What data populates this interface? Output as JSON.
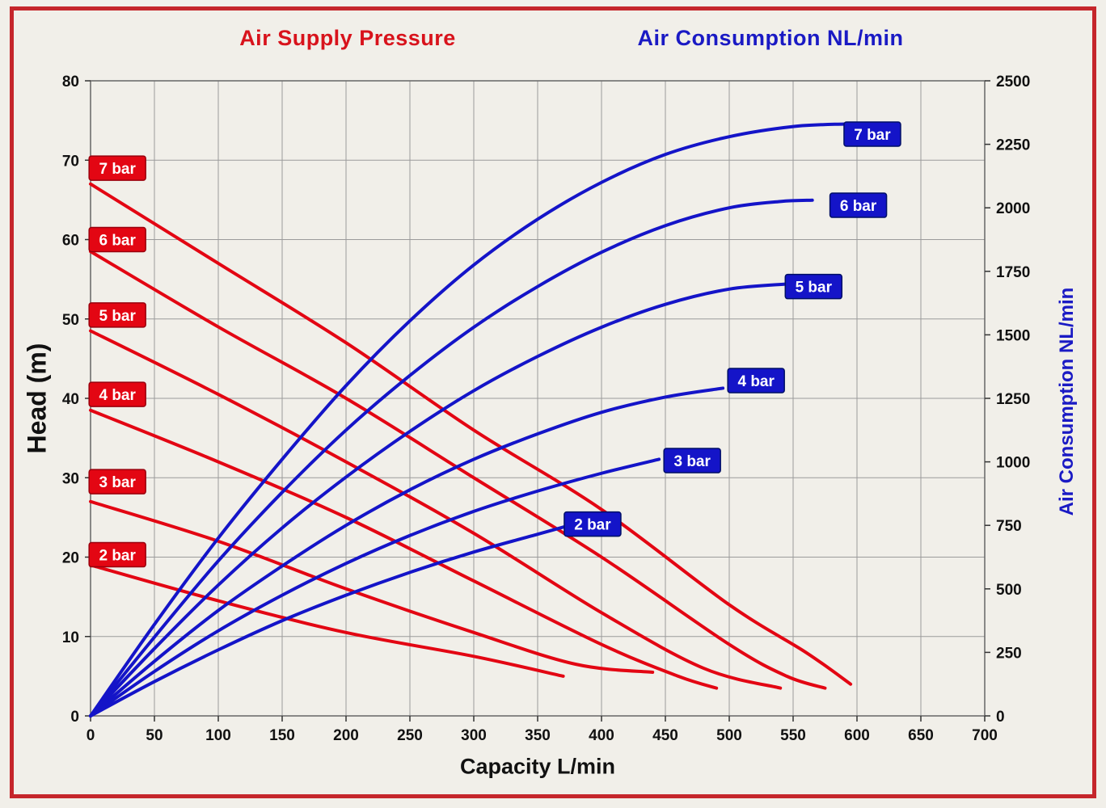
{
  "colors": {
    "red": "#e30613",
    "blue": "#1414c8",
    "grid": "#9b9b9b",
    "plot_border": "#666666",
    "axis_text": "#111111",
    "frame_border": "#c5262b",
    "background": "#f1efe9",
    "label_text": "#ffffff"
  },
  "chart_data": {
    "type": "line",
    "title_left": "Air Supply Pressure",
    "title_right": "Air Consumption NL/min",
    "xlabel": "Capacity L/min",
    "ylabel_left": "Head (m)",
    "ylabel_right": "Air Consumption NL/min",
    "x_range": [
      0,
      700
    ],
    "x_ticks": [
      0,
      50,
      100,
      150,
      200,
      250,
      300,
      350,
      400,
      450,
      500,
      550,
      600,
      650,
      700
    ],
    "y_left_range": [
      0,
      80
    ],
    "y_left_ticks": [
      0,
      10,
      20,
      30,
      40,
      50,
      60,
      70,
      80
    ],
    "y_right_range": [
      0,
      2500
    ],
    "y_right_ticks": [
      0,
      250,
      500,
      750,
      1000,
      1250,
      1500,
      1750,
      2000,
      2250,
      2500
    ],
    "grid": true,
    "head_series": [
      {
        "name": "7 bar",
        "points": [
          [
            0,
            67
          ],
          [
            100,
            57
          ],
          [
            200,
            47
          ],
          [
            300,
            36
          ],
          [
            400,
            26
          ],
          [
            500,
            14
          ],
          [
            560,
            8
          ],
          [
            595,
            4
          ]
        ],
        "label": [
          21,
          69
        ]
      },
      {
        "name": "6 bar",
        "points": [
          [
            0,
            58.5
          ],
          [
            100,
            49
          ],
          [
            200,
            40
          ],
          [
            300,
            30
          ],
          [
            400,
            20
          ],
          [
            500,
            9
          ],
          [
            545,
            5
          ],
          [
            575,
            3.5
          ]
        ],
        "label": [
          21,
          60
        ]
      },
      {
        "name": "5 bar",
        "points": [
          [
            0,
            48.5
          ],
          [
            100,
            40.5
          ],
          [
            200,
            32
          ],
          [
            300,
            23
          ],
          [
            400,
            13
          ],
          [
            480,
            6
          ],
          [
            540,
            3.5
          ]
        ],
        "label": [
          21,
          50.5
        ]
      },
      {
        "name": "4 bar",
        "points": [
          [
            0,
            38.5
          ],
          [
            100,
            32
          ],
          [
            200,
            25
          ],
          [
            300,
            17
          ],
          [
            400,
            9
          ],
          [
            460,
            5
          ],
          [
            490,
            3.5
          ]
        ],
        "label": [
          21,
          40.5
        ]
      },
      {
        "name": "3 bar",
        "points": [
          [
            0,
            27
          ],
          [
            100,
            22
          ],
          [
            200,
            16
          ],
          [
            300,
            10.5
          ],
          [
            380,
            6.5
          ],
          [
            440,
            5.5
          ]
        ],
        "label": [
          21,
          29.5
        ]
      },
      {
        "name": "2 bar",
        "points": [
          [
            0,
            19
          ],
          [
            100,
            14.5
          ],
          [
            200,
            10.5
          ],
          [
            300,
            7.5
          ],
          [
            370,
            5
          ]
        ],
        "label": [
          21,
          20.3
        ]
      }
    ],
    "air_series": [
      {
        "name": "7 bar",
        "points": [
          [
            0,
            0
          ],
          [
            50,
            360
          ],
          [
            100,
            700
          ],
          [
            150,
            1010
          ],
          [
            200,
            1300
          ],
          [
            250,
            1555
          ],
          [
            300,
            1775
          ],
          [
            350,
            1955
          ],
          [
            400,
            2100
          ],
          [
            450,
            2210
          ],
          [
            500,
            2280
          ],
          [
            550,
            2320
          ],
          [
            590,
            2330
          ]
        ],
        "label": [
          612,
          2290
        ]
      },
      {
        "name": "6 bar",
        "points": [
          [
            0,
            0
          ],
          [
            50,
            310
          ],
          [
            100,
            610
          ],
          [
            150,
            880
          ],
          [
            200,
            1125
          ],
          [
            250,
            1340
          ],
          [
            300,
            1530
          ],
          [
            350,
            1690
          ],
          [
            400,
            1825
          ],
          [
            450,
            1930
          ],
          [
            500,
            2000
          ],
          [
            540,
            2025
          ],
          [
            565,
            2030
          ]
        ],
        "label": [
          601,
          2010
        ]
      },
      {
        "name": "5 bar",
        "points": [
          [
            0,
            0
          ],
          [
            50,
            265
          ],
          [
            100,
            515
          ],
          [
            150,
            740
          ],
          [
            200,
            940
          ],
          [
            250,
            1120
          ],
          [
            300,
            1280
          ],
          [
            350,
            1415
          ],
          [
            400,
            1530
          ],
          [
            450,
            1620
          ],
          [
            500,
            1680
          ],
          [
            545,
            1700
          ]
        ],
        "label": [
          566,
          1690
        ]
      },
      {
        "name": "4 bar",
        "points": [
          [
            0,
            0
          ],
          [
            50,
            215
          ],
          [
            100,
            415
          ],
          [
            150,
            590
          ],
          [
            200,
            750
          ],
          [
            250,
            890
          ],
          [
            300,
            1010
          ],
          [
            350,
            1110
          ],
          [
            400,
            1195
          ],
          [
            450,
            1255
          ],
          [
            495,
            1290
          ]
        ],
        "label": [
          521,
          1320
        ]
      },
      {
        "name": "3 bar",
        "points": [
          [
            0,
            0
          ],
          [
            50,
            175
          ],
          [
            100,
            335
          ],
          [
            150,
            475
          ],
          [
            200,
            600
          ],
          [
            250,
            710
          ],
          [
            300,
            805
          ],
          [
            350,
            885
          ],
          [
            400,
            955
          ],
          [
            445,
            1010
          ]
        ],
        "label": [
          471,
          1005
        ]
      },
      {
        "name": "2 bar",
        "points": [
          [
            0,
            0
          ],
          [
            50,
            135
          ],
          [
            100,
            260
          ],
          [
            150,
            375
          ],
          [
            200,
            475
          ],
          [
            250,
            565
          ],
          [
            300,
            645
          ],
          [
            350,
            715
          ],
          [
            375,
            750
          ]
        ],
        "label": [
          393,
          755
        ]
      }
    ]
  }
}
